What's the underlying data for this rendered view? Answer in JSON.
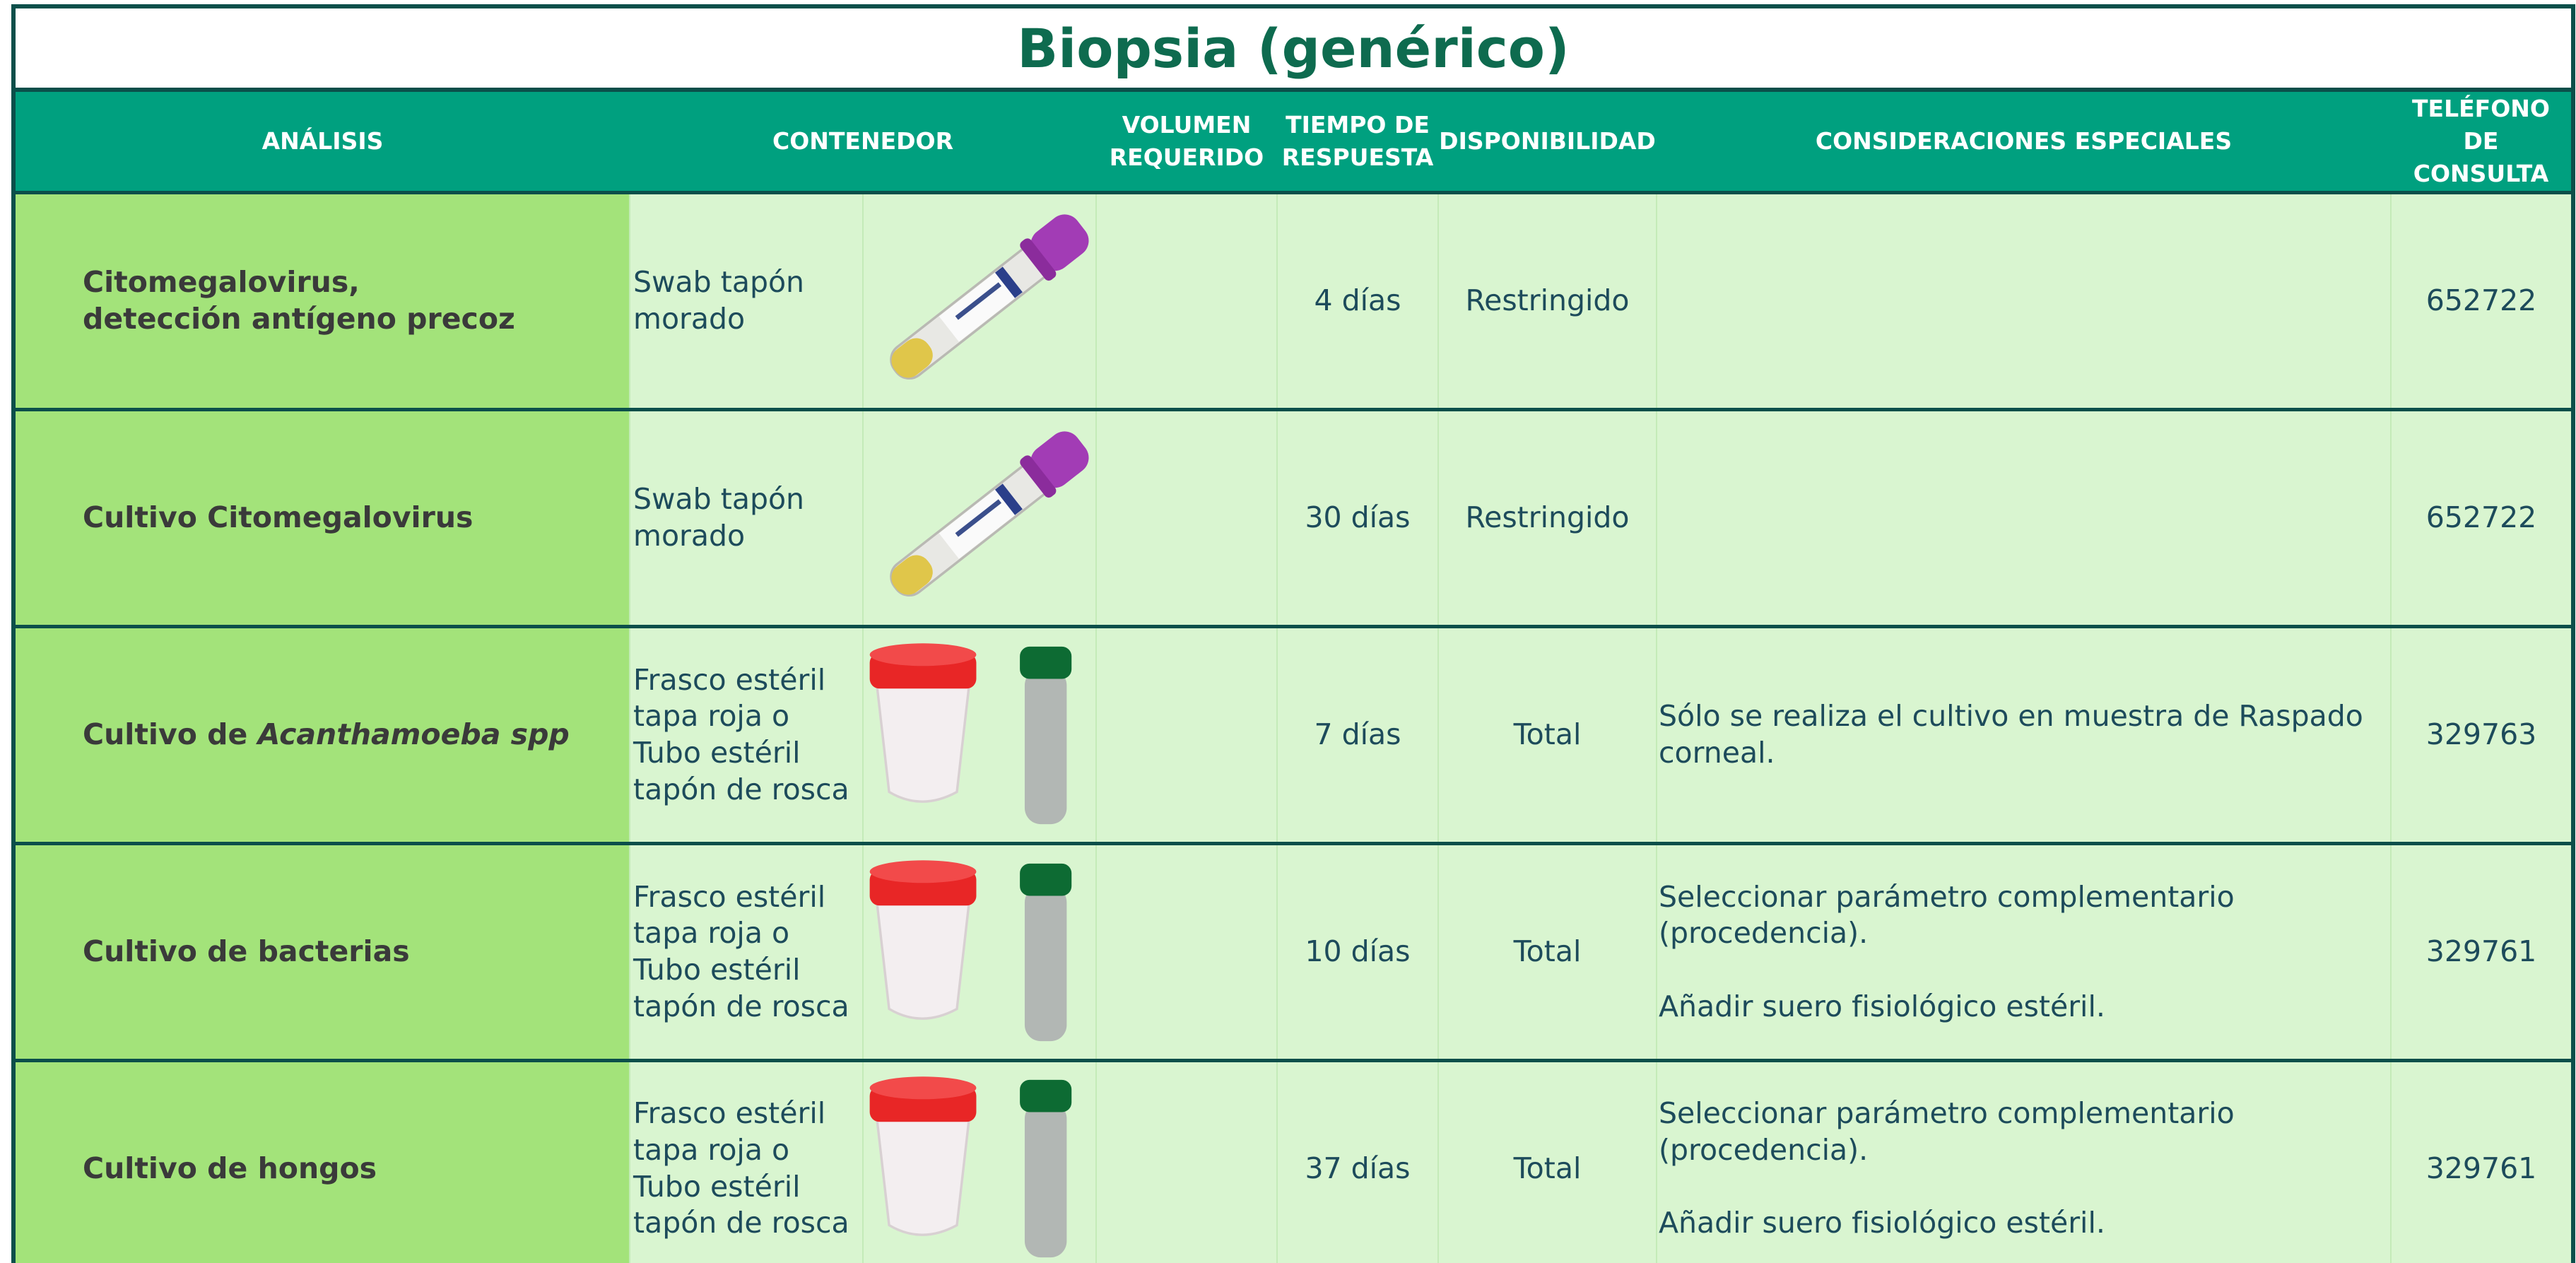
{
  "header": {
    "title": "Biopsia (genérico)"
  },
  "table": {
    "columns": [
      "ANÁLISIS",
      "CONTENEDOR",
      "VOLUMEN\nREQUERIDO",
      "TIEMPO DE\nRESPUESTA",
      "DISPONIBILIDAD",
      "CONSIDERACIONES ESPECIALES",
      "TELÉFONO\nDE\nCONSULTA"
    ],
    "rows": [
      {
        "analysis": "Citomegalovirus,\ndetección antígeno precoz",
        "container": "Swab tapón\nmorado",
        "time": "4 días",
        "availability": "Restringido",
        "phone": "652722"
      },
      {
        "analysis": "Cultivo Citomegalovirus",
        "container": "Swab tapón\nmorado",
        "time": "30 días",
        "availability": "Restringido",
        "phone": "652722"
      },
      {
        "analysis": [
          "Cultivo de",
          "Acanthamoeba spp"
        ],
        "container": "Frasco estéril\ntapa roja  o\nTubo estéril\ntapón de rosca",
        "time": "7 días",
        "availability": "Total",
        "considerations": "Sólo se realiza el cultivo en muestra de Raspado\ncorneal.",
        "phone": "329763"
      },
      {
        "analysis": "Cultivo de bacterias",
        "container": "Frasco estéril\ntapa roja  o\nTubo estéril\ntapón de rosca",
        "time": "10 días",
        "availability": "Total",
        "considerations": "Seleccionar parámetro complementario\n(procedencia).\n\nAñadir suero fisiológico estéril.",
        "phone": "329761"
      },
      {
        "analysis": "Cultivo de hongos",
        "container": "Frasco estéril\ntapa roja  o\nTubo estéril\ntapón de rosca",
        "time": "37 días",
        "availability": "Total",
        "considerations": "Seleccionar parámetro complementario\n(procedencia).\n\nAñadir suero fisiológico estéril.",
        "phone": "329761"
      }
    ]
  }
}
